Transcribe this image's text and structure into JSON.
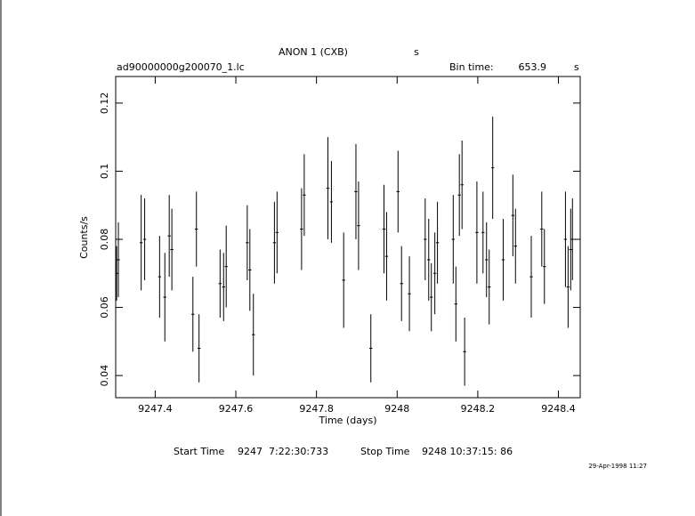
{
  "chart_data": {
    "type": "errorbar",
    "title": "ANON 1 (CXB)",
    "title_unit": "s",
    "file_name": "ad90000000g200070_1.lc",
    "bin_time_label": "Bin time:",
    "bin_time": "653.9",
    "bin_time_unit": "s",
    "xlabel": "Time (days)",
    "ylabel": "Counts/s",
    "start_time_label": "Start Time",
    "start_time": "9247  7:22:30:733",
    "stop_time_label": "Stop Time",
    "stop_time": "9248 10:37:15: 86",
    "date_stamp": "29-Apr-1998 11:27",
    "color": "#000000",
    "xlim": [
      9247.302,
      9248.454
    ],
    "ylim": [
      0.0335,
      0.1278
    ],
    "xticks": [
      9247.4,
      9247.6,
      9247.8,
      9248,
      9248.2,
      9248.4
    ],
    "yticks": [
      0.04,
      0.06,
      0.08,
      0.1,
      0.12
    ],
    "x": [
      9247.3043,
      9247.3087,
      9247.3652,
      9247.3739,
      9247.4109,
      9247.4239,
      9247.4348,
      9247.4413,
      9247.4935,
      9247.5022,
      9247.5087,
      9247.5609,
      9247.5696,
      9247.5761,
      9247.6283,
      9247.6348,
      9247.6435,
      9247.6957,
      9247.7022,
      9247.763,
      9247.7696,
      9247.8283,
      9247.837,
      9247.8674,
      9247.8978,
      9247.9043,
      9247.9348,
      9247.9674,
      9247.9739,
      9248.0022,
      9248.0109,
      9248.0304,
      9248.0696,
      9248.0783,
      9248.0848,
      9248.0935,
      9248.1,
      9248.1391,
      9248.1457,
      9248.1543,
      9248.1609,
      9248.1674,
      9248.1978,
      9248.213,
      9248.2217,
      9248.2283,
      9248.237,
      9248.263,
      9248.287,
      9248.2935,
      9248.3326,
      9248.3587,
      9248.3652,
      9248.4174,
      9248.4239,
      9248.4304,
      9248.4348
    ],
    "values": [
      0.07,
      0.074,
      0.079,
      0.08,
      0.069,
      0.063,
      0.081,
      0.077,
      0.058,
      0.083,
      0.048,
      0.067,
      0.066,
      0.072,
      0.079,
      0.071,
      0.052,
      0.079,
      0.082,
      0.083,
      0.093,
      0.095,
      0.091,
      0.068,
      0.094,
      0.084,
      0.048,
      0.083,
      0.075,
      0.094,
      0.067,
      0.064,
      0.08,
      0.074,
      0.063,
      0.07,
      0.079,
      0.08,
      0.061,
      0.093,
      0.096,
      0.047,
      0.082,
      0.082,
      0.074,
      0.066,
      0.101,
      0.074,
      0.087,
      0.078,
      0.069,
      0.083,
      0.072,
      0.08,
      0.066,
      0.077,
      0.08
    ],
    "errors": [
      0.008,
      0.011,
      0.014,
      0.012,
      0.012,
      0.013,
      0.012,
      0.012,
      0.011,
      0.011,
      0.01,
      0.01,
      0.01,
      0.012,
      0.011,
      0.012,
      0.012,
      0.012,
      0.012,
      0.012,
      0.012,
      0.015,
      0.012,
      0.014,
      0.014,
      0.013,
      0.01,
      0.013,
      0.013,
      0.012,
      0.011,
      0.011,
      0.012,
      0.012,
      0.01,
      0.012,
      0.012,
      0.013,
      0.011,
      0.012,
      0.013,
      0.01,
      0.015,
      0.012,
      0.011,
      0.011,
      0.015,
      0.012,
      0.012,
      0.011,
      0.012,
      0.011,
      0.011,
      0.014,
      0.012,
      0.012,
      0.012
    ]
  }
}
